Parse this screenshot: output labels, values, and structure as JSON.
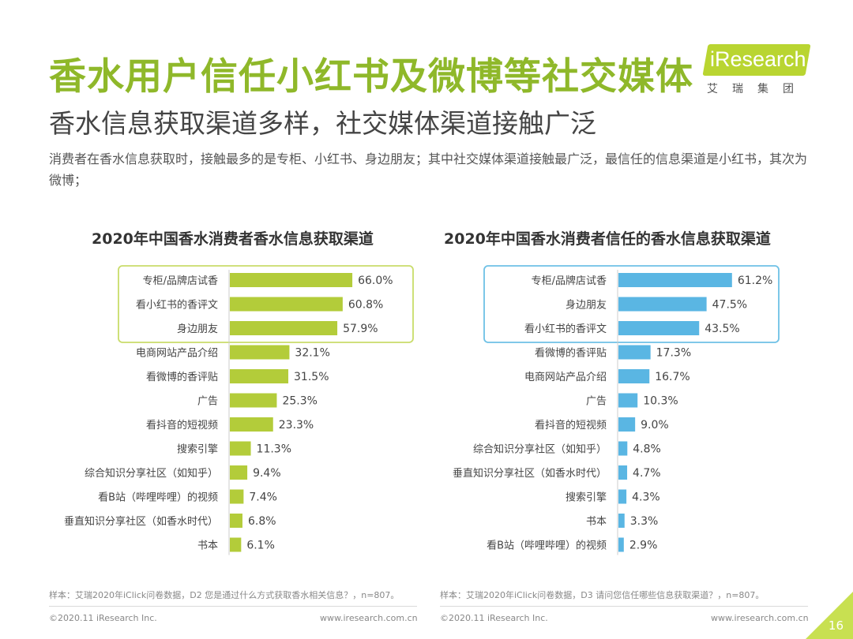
{
  "header": {
    "title": "香水用户信任小红书及微博等社交媒体",
    "subtitle": "香水信息获取渠道多样，社交媒体渠道接触广泛",
    "summary": "消费者在香水信息获取时，接触最多的是专柜、小红书、身边朋友；其中社交媒体渠道接触最广泛，最信任的信息渠道是小红书，其次为微博；"
  },
  "logo": {
    "brand": "iResearch",
    "brand_cn": "艾瑞集团"
  },
  "colors": {
    "title_green": "#8fb82a",
    "bar_green": "#b3cc3a",
    "highlight_green": "#c9dc6a",
    "bar_blue": "#5ab6e3",
    "highlight_blue": "#6ec1e6"
  },
  "chart_data": [
    {
      "type": "bar",
      "orientation": "horizontal",
      "title": "2020年中国香水消费者香水信息获取渠道",
      "categories": [
        "专柜/品牌店试香",
        "看小红书的香评文",
        "身边朋友",
        "电商网站产品介绍",
        "看微博的香评贴",
        "广告",
        "看抖音的短视频",
        "搜索引擎",
        "综合知识分享社区（如知乎）",
        "看B站（哔哩哔哩）的视频",
        "垂直知识分享社区（如香水时代）",
        "书本"
      ],
      "values": [
        66.0,
        60.8,
        57.9,
        32.1,
        31.5,
        25.3,
        23.3,
        11.3,
        9.4,
        7.4,
        6.8,
        6.1
      ],
      "value_labels": [
        "66.0%",
        "60.8%",
        "57.9%",
        "32.1%",
        "31.5%",
        "25.3%",
        "23.3%",
        "11.3%",
        "9.4%",
        "7.4%",
        "6.8%",
        "6.1%"
      ],
      "unit": "%",
      "highlighted_top": 3,
      "color": "#b3cc3a"
    },
    {
      "type": "bar",
      "orientation": "horizontal",
      "title": "2020年中国香水消费者信任的香水信息获取渠道",
      "categories": [
        "专柜/品牌店试香",
        "身边朋友",
        "看小红书的香评文",
        "看微博的香评贴",
        "电商网站产品介绍",
        "广告",
        "看抖音的短视频",
        "综合知识分享社区（如知乎）",
        "垂直知识分享社区（如香水时代）",
        "搜索引擎",
        "书本",
        "看B站（哔哩哔哩）的视频"
      ],
      "values": [
        61.2,
        47.5,
        43.5,
        17.3,
        16.7,
        10.3,
        9.0,
        4.8,
        4.7,
        4.3,
        3.3,
        2.9
      ],
      "value_labels": [
        "61.2%",
        "47.5%",
        "43.5%",
        "17.3%",
        "16.7%",
        "10.3%",
        "9.0%",
        "4.8%",
        "4.7%",
        "4.3%",
        "3.3%",
        "2.9%"
      ],
      "unit": "%",
      "highlighted_top": 3,
      "color": "#5ab6e3"
    }
  ],
  "notes": {
    "left": "样本：艾瑞2020年iClick问卷数据，D2 您是通过什么方式获取香水相关信息？，n=807。",
    "right": "样本：艾瑞2020年iClick问卷数据，D3 请问您信任哪些信息获取渠道？，n=807。"
  },
  "footer": {
    "left_copyright": "©2020.11 iResearch Inc.",
    "left_url": "www.iresearch.com.cn",
    "right_copyright": "©2020.11 iResearch Inc.",
    "right_url": "www.iresearch.com.cn",
    "page_number": "16"
  }
}
